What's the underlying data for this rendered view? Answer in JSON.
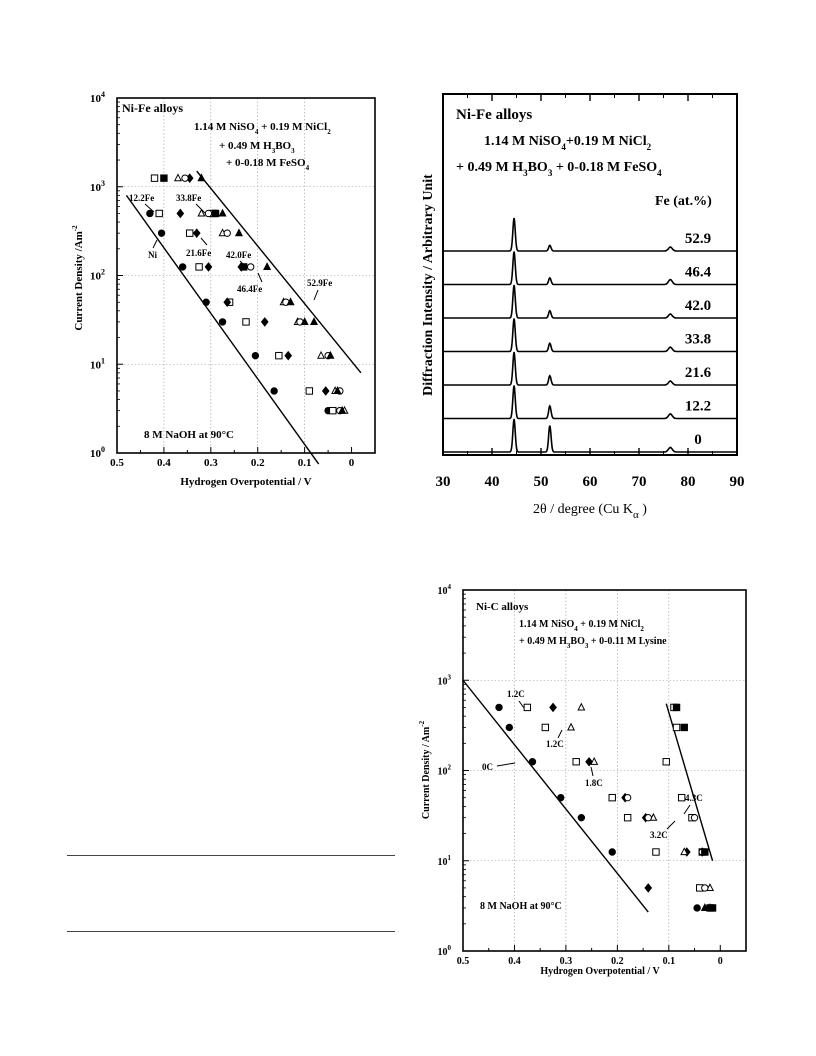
{
  "chart_data": [
    {
      "type": "scatter",
      "log_y": true,
      "x_reversed": true,
      "xlabel": "Hydrogen Overpotential / V",
      "ylabel": "Current Density /Am",
      "ylabel_sup": "-2",
      "xlim": [
        0.5,
        -0.05
      ],
      "ylim": [
        1,
        10000
      ],
      "x_ticks": [
        "0.5",
        "0.4",
        "0.3",
        "0.2",
        "0.1",
        "0"
      ],
      "y_ticks": [
        {
          "base": "10",
          "exp": "0"
        },
        {
          "base": "10",
          "exp": "1"
        },
        {
          "base": "10",
          "exp": "2"
        },
        {
          "base": "10",
          "exp": "3"
        },
        {
          "base": "10",
          "exp": "4"
        }
      ],
      "grid": true,
      "texts": {
        "alloy": "Ni-Fe   alloys",
        "bath_line1": "1.14  M  NiSO4  + 0.19  M  NiCl2",
        "bath_line2": "+ 0.49  M  H3BO3",
        "bath_line3": "+ 0-0.18  M  FeSO4",
        "electrolyte": "8  M  NaOH  at  90°C"
      },
      "bath_parts": {
        "l1a": "1.14  M  NiSO",
        "l1s1": "4",
        "l1b": "  + 0.19  M  NiCl",
        "l1s2": "2",
        "l2a": "+ 0.49  M  H",
        "l2s1": "3",
        "l2b": "BO",
        "l2s2": "3",
        "l3a": "+ 0-0.18  M  FeSO",
        "l3s1": "4"
      },
      "annotations": [
        "12.2Fe",
        "Ni",
        "33.8Fe",
        "21.6Fe",
        "42.0Fe",
        "46.4Fe",
        "52.9Fe"
      ],
      "series": [
        {
          "marker": "filled-circle",
          "points": [
            [
              0.43,
              500
            ],
            [
              0.405,
              300
            ],
            [
              0.36,
              125
            ],
            [
              0.31,
              50
            ],
            [
              0.275,
              30
            ],
            [
              0.205,
              12.5
            ],
            [
              0.165,
              5
            ],
            [
              0.05,
              3
            ]
          ]
        },
        {
          "marker": "open-square",
          "points": [
            [
              0.42,
              1250
            ],
            [
              0.41,
              500
            ],
            [
              0.345,
              300
            ],
            [
              0.325,
              125
            ],
            [
              0.295,
              500
            ],
            [
              0.26,
              50
            ],
            [
              0.225,
              30
            ],
            [
              0.155,
              12.5
            ],
            [
              0.09,
              5
            ],
            [
              0.04,
              3
            ]
          ]
        },
        {
          "marker": "filled-square",
          "points": [
            [
              0.4,
              1250
            ],
            [
              0.29,
              500
            ],
            [
              0.23,
              125
            ]
          ]
        },
        {
          "marker": "filled-diamond",
          "points": [
            [
              0.365,
              500
            ],
            [
              0.345,
              1250
            ],
            [
              0.33,
              300
            ],
            [
              0.305,
              125
            ],
            [
              0.265,
              50
            ],
            [
              0.235,
              125
            ],
            [
              0.185,
              30
            ],
            [
              0.135,
              12.5
            ],
            [
              0.055,
              5
            ]
          ]
        },
        {
          "marker": "open-triangle",
          "points": [
            [
              0.37,
              1250
            ],
            [
              0.32,
              500
            ],
            [
              0.275,
              300
            ],
            [
              0.145,
              50
            ],
            [
              0.115,
              30
            ],
            [
              0.065,
              12.5
            ],
            [
              0.035,
              5
            ],
            [
              0.015,
              3
            ]
          ]
        },
        {
          "marker": "open-circle",
          "points": [
            [
              0.355,
              1250
            ],
            [
              0.305,
              500
            ],
            [
              0.265,
              300
            ],
            [
              0.215,
              125
            ],
            [
              0.14,
              50
            ],
            [
              0.11,
              30
            ],
            [
              0.05,
              12.5
            ],
            [
              0.025,
              5
            ],
            [
              0.025,
              3
            ]
          ]
        },
        {
          "marker": "filled-triangle",
          "points": [
            [
              0.32,
              1250
            ],
            [
              0.275,
              500
            ],
            [
              0.24,
              300
            ],
            [
              0.18,
              125
            ],
            [
              0.13,
              50
            ],
            [
              0.1,
              30
            ],
            [
              0.08,
              30
            ],
            [
              0.045,
              12.5
            ],
            [
              0.03,
              5
            ],
            [
              0.02,
              3
            ]
          ]
        }
      ],
      "fit_lines": [
        [
          [
            0.48,
            800
          ],
          [
            0.07,
            0.75
          ]
        ],
        [
          [
            0.33,
            1500
          ],
          [
            -0.02,
            8
          ]
        ]
      ]
    },
    {
      "type": "line",
      "title": "Ni-Fe   alloys",
      "xlabel": "2θ  /  degree  (Cu  K",
      "xlabel_sub": "α",
      "xlabel_end": "  )",
      "ylabel": "Diffraction  Intensity  /  Arbitrary  Unit",
      "xlim": [
        30,
        90
      ],
      "x_ticks": [
        "30",
        "40",
        "50",
        "60",
        "70",
        "80",
        "90"
      ],
      "grid": false,
      "bath": {
        "l1a": "1.14  M  NiSO",
        "l1s1": "4",
        "l1b": "+0.19  M  NiCl",
        "l1s2": "2",
        "l2a": "+ 0.49  M  H",
        "l2s1": "3",
        "l2b": "BO",
        "l2s2": "3",
        "l2c": "  +  0-0.18  M  FeSO",
        "l2s3": "4"
      },
      "legend_title": "Fe   (at.%)",
      "peaks_2theta": [
        44.5,
        51.8,
        76.4
      ],
      "series": [
        {
          "name": "52.9",
          "peaks": [
            1.0,
            0.17,
            0.12
          ]
        },
        {
          "name": "46.4",
          "peaks": [
            1.0,
            0.2,
            0.15
          ]
        },
        {
          "name": "42.0",
          "peaks": [
            1.0,
            0.22,
            0.12
          ]
        },
        {
          "name": "33.8",
          "peaks": [
            1.0,
            0.25,
            0.13
          ]
        },
        {
          "name": "21.6",
          "peaks": [
            1.0,
            0.28,
            0.12
          ]
        },
        {
          "name": "12.2",
          "peaks": [
            1.0,
            0.38,
            0.14
          ]
        },
        {
          "name": "0",
          "peaks": [
            1.0,
            0.8,
            0.14
          ]
        }
      ]
    },
    {
      "type": "scatter",
      "log_y": true,
      "x_reversed": true,
      "xlabel": "Hydrogen  Overpotential  /  V",
      "ylabel": "Current Density / Am",
      "ylabel_sup": "-2",
      "xlim": [
        0.5,
        -0.05
      ],
      "ylim": [
        1,
        10000
      ],
      "x_ticks": [
        "0.5",
        "0.4",
        "0.3",
        "0.2",
        "0.1",
        "0"
      ],
      "y_ticks": [
        {
          "base": "10",
          "exp": "0"
        },
        {
          "base": "10",
          "exp": "1"
        },
        {
          "base": "10",
          "exp": "2"
        },
        {
          "base": "10",
          "exp": "3"
        },
        {
          "base": "10",
          "exp": "4"
        }
      ],
      "grid": true,
      "texts": {
        "alloy": "Ni-C   alloys",
        "electrolyte": "8  M  NaOH  at  90°C"
      },
      "bath_parts": {
        "l1a": "1.14  M  NiSO",
        "l1s1": "4",
        "l1b": "  +  0.19  M  NiCl",
        "l1s2": "2",
        "l2a": "+  0.49  M  H",
        "l2s1": "3",
        "l2b": "BO",
        "l2s2": "3",
        "l2c": "  +  0-0.11  M  Lysine"
      },
      "annotations": [
        "1.2C",
        "1.2C",
        "0C",
        "1.8C",
        "4.3C",
        "3.2C"
      ],
      "series": [
        {
          "marker": "filled-circle",
          "points": [
            [
              0.43,
              500
            ],
            [
              0.41,
              300
            ],
            [
              0.365,
              125
            ],
            [
              0.31,
              50
            ],
            [
              0.27,
              30
            ],
            [
              0.21,
              12.5
            ],
            [
              0.045,
              3
            ]
          ]
        },
        {
          "marker": "open-square",
          "points": [
            [
              0.375,
              500
            ],
            [
              0.34,
              300
            ],
            [
              0.28,
              125
            ],
            [
              0.21,
              50
            ],
            [
              0.18,
              30
            ],
            [
              0.125,
              12.5
            ],
            [
              0.04,
              5
            ],
            [
              0.075,
              50
            ],
            [
              0.055,
              30
            ],
            [
              0.035,
              12.5
            ],
            [
              0.105,
              125
            ],
            [
              0.085,
              300
            ],
            [
              0.09,
              500
            ]
          ]
        },
        {
          "marker": "filled-diamond",
          "points": [
            [
              0.325,
              500
            ],
            [
              0.255,
              125
            ],
            [
              0.185,
              50
            ],
            [
              0.145,
              30
            ],
            [
              0.14,
              5
            ],
            [
              0.065,
              12.5
            ],
            [
              0.035,
              12.5
            ]
          ]
        },
        {
          "marker": "open-triangle",
          "points": [
            [
              0.27,
              500
            ],
            [
              0.29,
              300
            ],
            [
              0.245,
              125
            ],
            [
              0.13,
              30
            ],
            [
              0.07,
              12.5
            ],
            [
              0.02,
              5
            ]
          ]
        },
        {
          "marker": "filled-triangle",
          "points": [
            [
              0.02,
              3
            ],
            [
              0.03,
              3
            ]
          ]
        },
        {
          "marker": "open-circle",
          "points": [
            [
              0.18,
              50
            ],
            [
              0.14,
              30
            ],
            [
              0.03,
              5
            ],
            [
              0.05,
              30
            ],
            [
              0.035,
              12.5
            ]
          ]
        },
        {
          "marker": "filled-square",
          "points": [
            [
              0.085,
              500
            ],
            [
              0.07,
              300
            ],
            [
              0.03,
              12.5
            ],
            [
              0.02,
              3
            ],
            [
              0.015,
              3
            ]
          ]
        }
      ],
      "fit_lines": [
        [
          [
            0.5,
            1000
          ],
          [
            0.14,
            2.7
          ]
        ],
        [
          [
            0.105,
            550
          ],
          [
            0.015,
            10
          ]
        ]
      ]
    }
  ]
}
